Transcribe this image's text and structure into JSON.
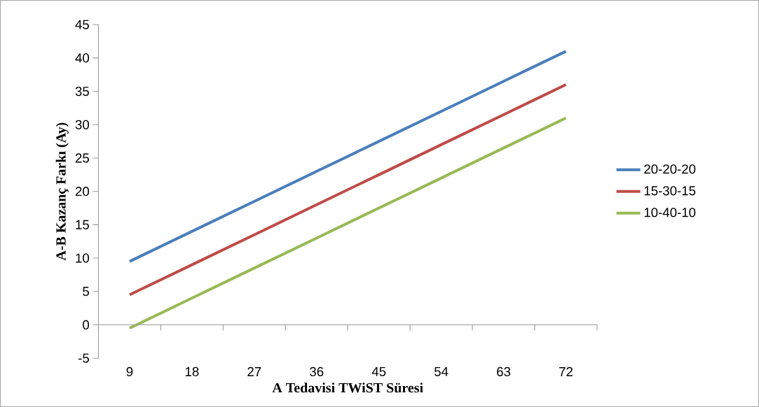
{
  "chart_data": {
    "type": "line",
    "xlabel": "A Tedavisi TWiST Süresi",
    "ylabel": "A-B Kazanç Farkı (Ay)",
    "categories": [
      "9",
      "18",
      "27",
      "36",
      "45",
      "54",
      "63",
      "72"
    ],
    "series": [
      {
        "name": "20-20-20",
        "color": "#4a7ebb",
        "values": [
          9.5,
          14,
          18.5,
          23,
          27.5,
          32,
          36.5,
          41
        ]
      },
      {
        "name": "15-30-15",
        "color": "#be4b48",
        "values": [
          4.5,
          9,
          13.5,
          18,
          22.5,
          27,
          31.5,
          36
        ]
      },
      {
        "name": "10-40-10",
        "color": "#98b954",
        "values": [
          -0.5,
          4,
          8.5,
          13,
          17.5,
          22,
          26.5,
          31
        ]
      }
    ],
    "ylim": [
      -5,
      45
    ],
    "yticks": [
      -5,
      0,
      5,
      10,
      15,
      20,
      25,
      30,
      35,
      40,
      45
    ],
    "legend": "right"
  }
}
